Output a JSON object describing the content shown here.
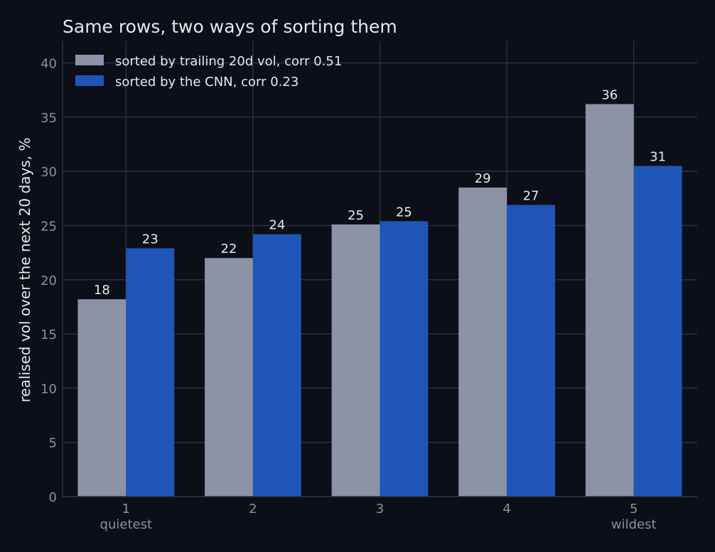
{
  "chart_data": {
    "type": "bar",
    "title": "Same rows, two ways of sorting them",
    "xlabel": "",
    "ylabel": "realised vol over the next 20 days, %",
    "categories": [
      "1",
      "2",
      "3",
      "4",
      "5"
    ],
    "category_sublabels": [
      "quietest",
      "",
      "",
      "",
      "wildest"
    ],
    "ylim": [
      0,
      42
    ],
    "yticks": [
      0,
      5,
      10,
      15,
      20,
      25,
      30,
      35,
      40
    ],
    "grid": true,
    "legend_position": "top-left",
    "series": [
      {
        "name": "sorted by trailing 20d vol, corr 0.51",
        "color": "#8c93a6",
        "values": [
          18.2,
          22.0,
          25.1,
          28.5,
          36.2
        ],
        "labels": [
          "18",
          "22",
          "25",
          "29",
          "36"
        ]
      },
      {
        "name": "sorted by the CNN, corr 0.23",
        "color": "#1f55b8",
        "values": [
          22.9,
          24.2,
          25.4,
          26.9,
          30.5
        ],
        "labels": [
          "23",
          "24",
          "25",
          "27",
          "31"
        ]
      }
    ]
  },
  "colors": {
    "background": "#0c0f17",
    "grid": "#2b3040",
    "text": "#e6e8ee",
    "tick_text": "#8a90a2"
  }
}
